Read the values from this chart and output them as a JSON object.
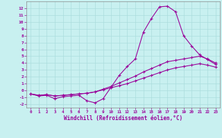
{
  "xlabel": "Windchill (Refroidissement éolien,°C)",
  "background_color": "#c8f0f0",
  "line_color": "#990099",
  "grid_color": "#aadddd",
  "spine_color": "#888888",
  "xlim": [
    -0.5,
    23.5
  ],
  "ylim": [
    -2.5,
    13.0
  ],
  "xticks": [
    0,
    1,
    2,
    3,
    4,
    5,
    6,
    7,
    8,
    9,
    10,
    11,
    12,
    13,
    14,
    15,
    16,
    17,
    18,
    19,
    20,
    21,
    22,
    23
  ],
  "yticks": [
    -2,
    -1,
    0,
    1,
    2,
    3,
    4,
    5,
    6,
    7,
    8,
    9,
    10,
    11,
    12
  ],
  "curve1_x": [
    0,
    1,
    2,
    3,
    4,
    5,
    6,
    7,
    8,
    9,
    10,
    11,
    12,
    13,
    14,
    15,
    16,
    17,
    18,
    19,
    20,
    21,
    22,
    23
  ],
  "curve1_y": [
    -0.5,
    -0.8,
    -0.7,
    -1.2,
    -0.9,
    -0.8,
    -0.7,
    -1.5,
    -1.8,
    -1.2,
    0.5,
    2.2,
    3.5,
    4.6,
    8.5,
    10.5,
    12.2,
    12.3,
    11.5,
    8.0,
    6.5,
    5.2,
    4.5,
    3.8
  ],
  "curve2_x": [
    0,
    1,
    2,
    3,
    4,
    5,
    6,
    7,
    8,
    9,
    10,
    11,
    12,
    13,
    14,
    15,
    16,
    17,
    18,
    19,
    20,
    21,
    22,
    23
  ],
  "curve2_y": [
    -0.5,
    -0.7,
    -0.6,
    -0.8,
    -0.7,
    -0.6,
    -0.5,
    -0.4,
    -0.2,
    0.2,
    0.6,
    1.1,
    1.6,
    2.1,
    2.7,
    3.2,
    3.7,
    4.2,
    4.4,
    4.6,
    4.8,
    5.0,
    4.6,
    4.0
  ],
  "curve3_x": [
    0,
    1,
    2,
    3,
    4,
    5,
    6,
    7,
    8,
    9,
    10,
    11,
    12,
    13,
    14,
    15,
    16,
    17,
    18,
    19,
    20,
    21,
    22,
    23
  ],
  "curve3_y": [
    -0.5,
    -0.7,
    -0.6,
    -0.8,
    -0.7,
    -0.6,
    -0.5,
    -0.4,
    -0.2,
    0.1,
    0.4,
    0.7,
    1.0,
    1.4,
    1.8,
    2.2,
    2.6,
    3.0,
    3.3,
    3.5,
    3.7,
    3.9,
    3.7,
    3.4
  ]
}
